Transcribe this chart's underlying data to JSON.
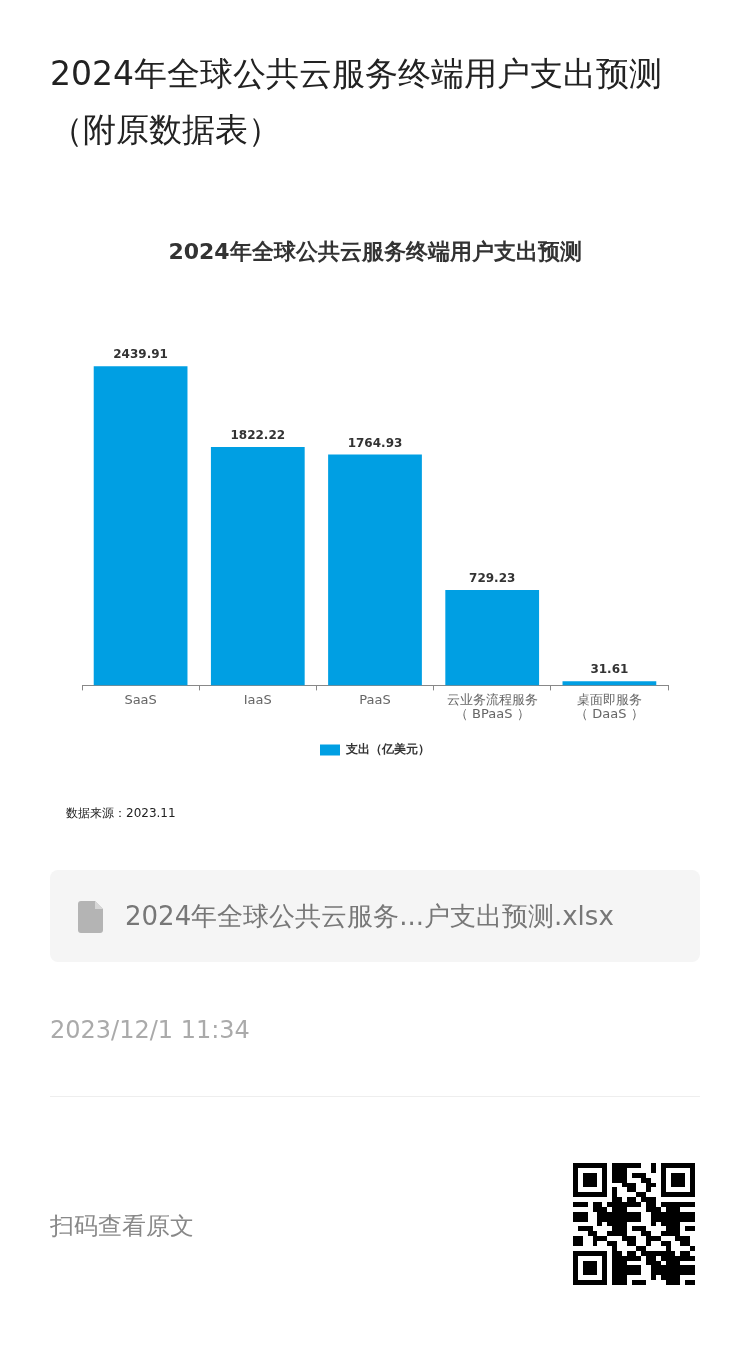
{
  "chart_data": {
    "type": "bar",
    "title": "2024年全球公共云服务终端用户支出预测（附原数据表）",
    "subtitle": "2024年全球公共云服务终端用户支出预测",
    "categories": [
      "SaaS",
      "IaaS",
      "PaaS",
      "云业务流程服务（ BPaaS ）",
      "桌面即服务（ DaaS ）"
    ],
    "series": [
      {
        "name": "支出（亿美元）",
        "color": "#009fe3",
        "values": [
          2439.91,
          1822.22,
          1764.93,
          729.23,
          31.61
        ]
      }
    ],
    "data_labels": true,
    "legend": "bottom",
    "annotations": [
      "数据来源：2023.11",
      "2024年全球公共云服务...户支出预测.xlsx",
      "2023/12/1 11:34",
      "扫码查看原文"
    ]
  }
}
